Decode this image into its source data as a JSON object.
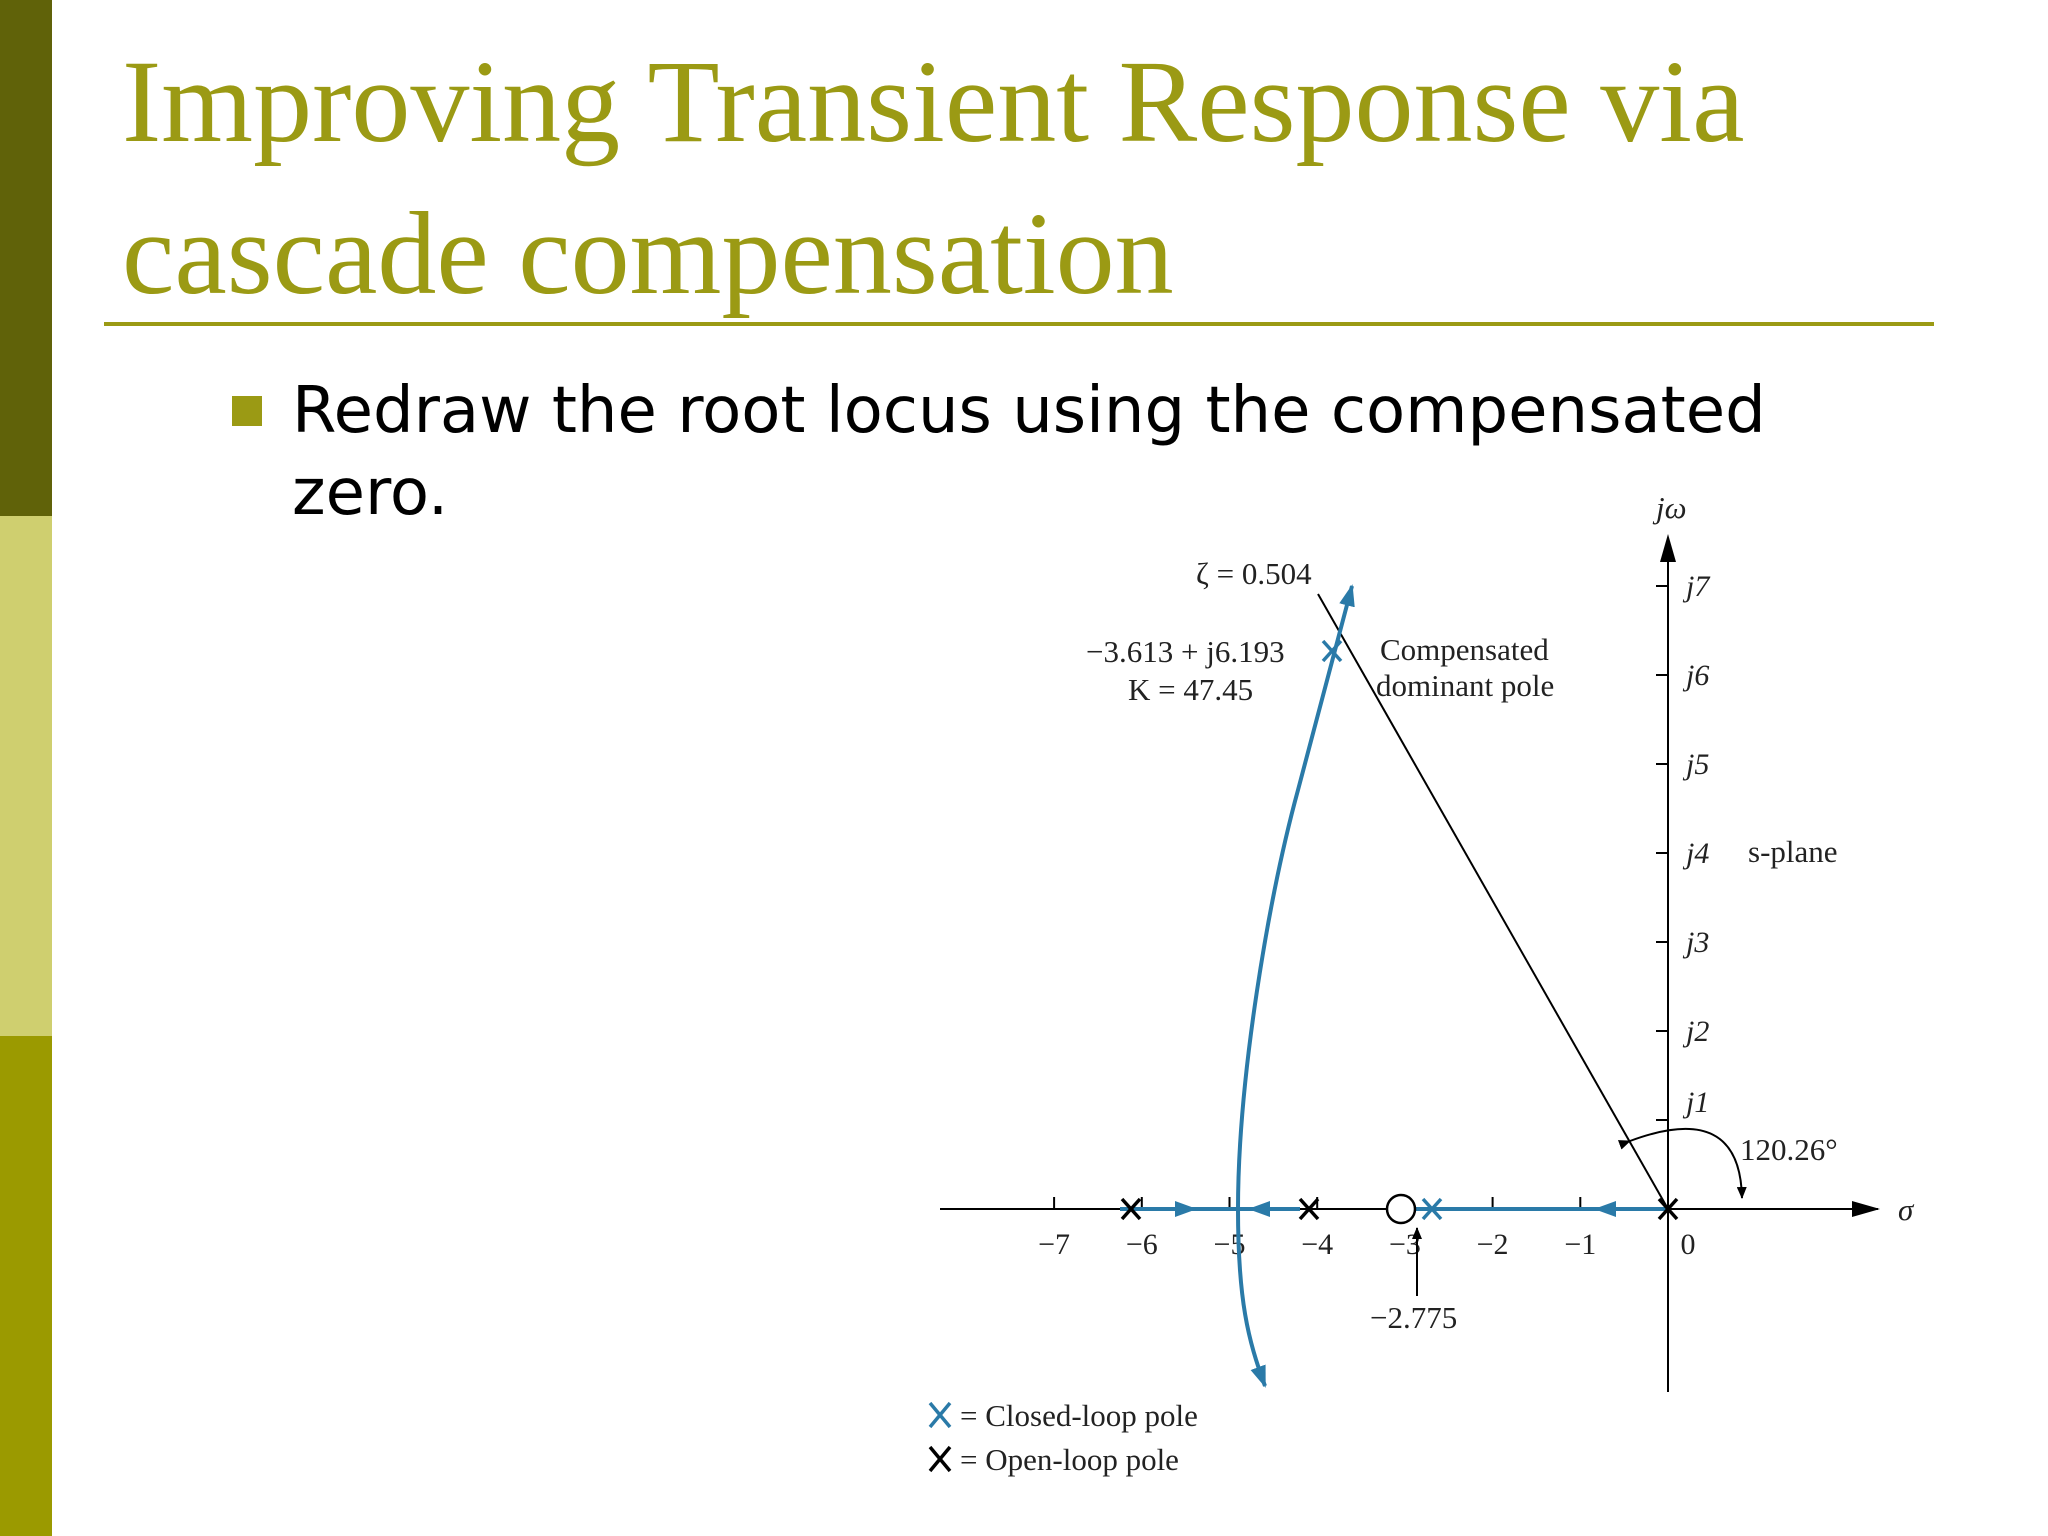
{
  "slide": {
    "title_line1": "Improving Transient Response via",
    "title_line2": "cascade compensation",
    "bullet": "Redraw the root locus using the compensated zero."
  },
  "colors": {
    "title": "#9b9a14",
    "locus": "#2a7aa8",
    "sidebar_dark": "#606209",
    "sidebar_light": "#cfcf6f",
    "sidebar_mid": "#9b9a00"
  },
  "chart_data": {
    "type": "root-locus",
    "x_axis_label": "σ",
    "y_axis_label": "jω",
    "plane_label": "s-plane",
    "x_ticks": [
      -7,
      -6,
      -5,
      -4,
      -3,
      -2,
      -1,
      0
    ],
    "x_tick_labels": [
      "−7",
      "−6",
      "−5",
      "−4",
      "−3",
      "−2",
      "−1",
      "0"
    ],
    "y_ticks": [
      1,
      2,
      3,
      4,
      5,
      6,
      7
    ],
    "y_tick_labels": [
      "j1",
      "j2",
      "j3",
      "j4",
      "j5",
      "j6",
      "j7"
    ],
    "open_loop_poles": [
      0,
      -4,
      -6
    ],
    "compensator_zero": -3,
    "closed_loop_poles_marked": [
      {
        "re": -3.613,
        "im": 6.193
      },
      {
        "re": -2.775,
        "im": 0
      }
    ],
    "zeta_line": {
      "label": "ζ = 0.504",
      "angle_label": "120.26°"
    },
    "annotations": {
      "pole_point_line1": "−3.613 + j6.193",
      "pole_point_line2": "K = 47.45",
      "dominant_label_line1": "Compensated",
      "dominant_label_line2": "dominant pole",
      "third_pole_label": "−2.775"
    },
    "legend": [
      {
        "marker": "X",
        "color": "#2a7aa8",
        "text": "= Closed-loop pole"
      },
      {
        "marker": "X",
        "color": "#000000",
        "text": "= Open-loop pole"
      }
    ]
  }
}
